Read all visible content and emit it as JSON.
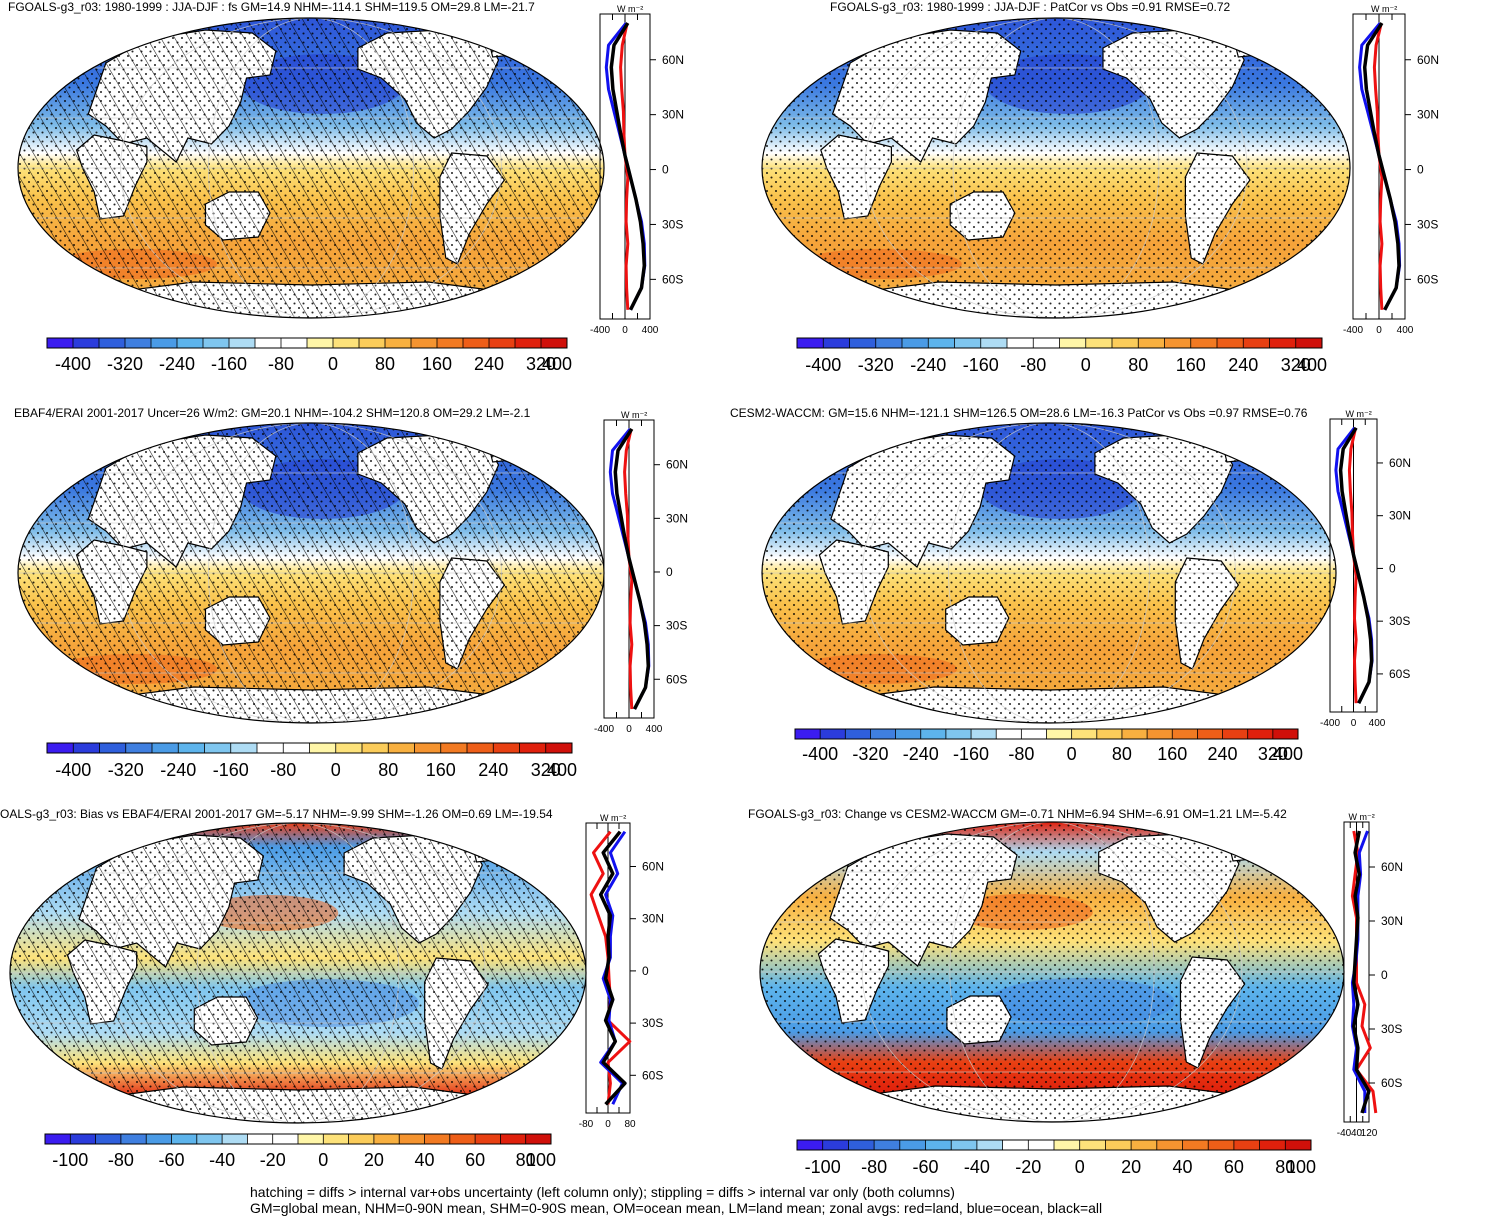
{
  "panels": [
    {
      "title": "FGOALS-g3_r03: 1980-1999 : JJA-DJF : fs GM=14.9 NHM=-114.1 SHM=119.5 OM=29.8 LM=-21.7",
      "units": "W m⁻²",
      "lat_labels": [
        "60N",
        "30N",
        "0",
        "30S",
        "60S"
      ],
      "profile_x_ticks": [
        "-400",
        "0",
        "400"
      ],
      "colorbar_labels": [
        "-400",
        "-320",
        "-240",
        "-160",
        "-80",
        "0",
        "80",
        "160",
        "240",
        "320",
        "400"
      ],
      "hatching": true,
      "map_style": "seasonal"
    },
    {
      "title": "FGOALS-g3_r03: 1980-1999 : JJA-DJF : PatCor vs Obs =0.91 RMSE=0.72",
      "units": "W m⁻²",
      "lat_labels": [
        "60N",
        "30N",
        "0",
        "30S",
        "60S"
      ],
      "profile_x_ticks": [
        "-400",
        "0",
        "400"
      ],
      "colorbar_labels": [
        "-400",
        "-320",
        "-240",
        "-160",
        "-80",
        "0",
        "80",
        "160",
        "240",
        "320",
        "400"
      ],
      "hatching": false,
      "map_style": "seasonal"
    },
    {
      "title": "EBAF4/ERAI 2001-2017 Uncer=26 W/m2: GM=20.1 NHM=-104.2 SHM=120.8 OM=29.2 LM=-2.1",
      "units": "W m⁻²",
      "lat_labels": [
        "60N",
        "30N",
        "0",
        "30S",
        "60S"
      ],
      "profile_x_ticks": [
        "-400",
        "0",
        "400"
      ],
      "colorbar_labels": [
        "-400",
        "-320",
        "-240",
        "-160",
        "-80",
        "0",
        "80",
        "160",
        "240",
        "320",
        "400"
      ],
      "hatching": true,
      "map_style": "seasonal"
    },
    {
      "title": "CESM2-WACCM: GM=15.6 NHM=-121.1 SHM=126.5 OM=28.6 LM=-16.3 PatCor vs Obs =0.97 RMSE=0.76",
      "units": "W m⁻²",
      "lat_labels": [
        "60N",
        "30N",
        "0",
        "30S",
        "60S"
      ],
      "profile_x_ticks": [
        "-400",
        "0",
        "400"
      ],
      "colorbar_labels": [
        "-400",
        "-320",
        "-240",
        "-160",
        "-80",
        "0",
        "80",
        "160",
        "240",
        "320",
        "400"
      ],
      "hatching": false,
      "map_style": "seasonal"
    },
    {
      "title": "OALS-g3_r03: Bias vs EBAF4/ERAI 2001-2017 GM=-5.17 NHM=-9.99 SHM=-1.26 OM=0.69 LM=-19.54",
      "units": "W m⁻²",
      "lat_labels": [
        "60N",
        "30N",
        "0",
        "30S",
        "60S"
      ],
      "profile_x_ticks": [
        "-80",
        "0",
        "80"
      ],
      "colorbar_labels": [
        "-100",
        "-80",
        "-60",
        "-40",
        "-20",
        "0",
        "20",
        "40",
        "60",
        "80",
        "100"
      ],
      "hatching": true,
      "map_style": "bias"
    },
    {
      "title": "FGOALS-g3_r03: Change vs CESM2-WACCM GM=-0.71 NHM=6.94 SHM=-6.91 OM=1.21 LM=-5.42",
      "units": "W m⁻²",
      "lat_labels": [
        "60N",
        "30N",
        "0",
        "30S",
        "60S"
      ],
      "profile_x_ticks": [
        "-40",
        "40",
        "120"
      ],
      "colorbar_labels": [
        "-100",
        "-80",
        "-60",
        "-40",
        "-20",
        "0",
        "20",
        "40",
        "60",
        "80",
        "100"
      ],
      "hatching": false,
      "map_style": "change"
    }
  ],
  "colorbar_colors": [
    "#3b1cf0",
    "#2b3cdc",
    "#2f5fdc",
    "#3f7fe0",
    "#4a9be6",
    "#5db4ec",
    "#7fc6ef",
    "#aedcf4",
    "#ffffff",
    "#ffffff",
    "#fff6a8",
    "#fde27a",
    "#fbcc5a",
    "#f8b040",
    "#f59430",
    "#f27a22",
    "#ee5e18",
    "#e84012",
    "#e0200c",
    "#d0100a"
  ],
  "profile_colors": {
    "land": "#ee1111",
    "ocean": "#1111ee",
    "all": "#000000"
  },
  "footer": {
    "line1": "hatching = diffs > internal var+obs uncertainty (left column only); stippling = diffs > internal var only (both columns)",
    "line2": "GM=global mean, NHM=0-90N mean, SHM=0-90S mean, OM=ocean mean, LM=land mean; zonal avgs: red=land, blue=ocean, black=all"
  }
}
